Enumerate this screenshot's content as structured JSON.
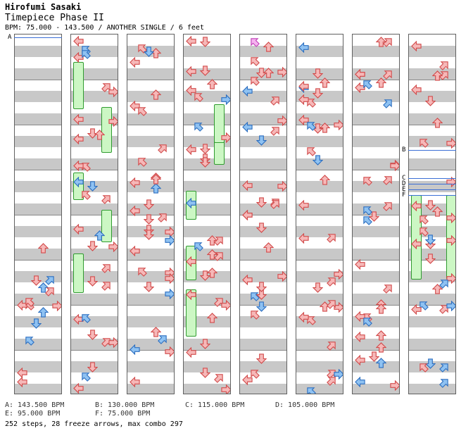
{
  "header": {
    "artist": "Hirofumi Sasaki",
    "title": "Timepiece Phase II",
    "meta": "BPM: 75.000 - 143.500 / ANOTHER SINGLE / 6 feet"
  },
  "chart": {
    "columns": 8,
    "markers": [
      {
        "label": "A",
        "column": 0,
        "row": 0
      },
      {
        "label": "B",
        "column": 7,
        "row": 20
      },
      {
        "label": "C",
        "column": 7,
        "row": 25
      },
      {
        "label": "D",
        "column": 7,
        "row": 26
      },
      {
        "label": "E",
        "column": 7,
        "row": 27
      },
      {
        "label": "F",
        "column": 7,
        "row": 28
      }
    ]
  },
  "legend": [
    {
      "key": "A",
      "text": "A: 143.500 BPM"
    },
    {
      "key": "B",
      "text": "B: 130.000 BPM"
    },
    {
      "key": "C",
      "text": "C: 115.000 BPM"
    },
    {
      "key": "D",
      "text": "D: 105.000 BPM"
    },
    {
      "key": "E",
      "text": "E: 95.000 BPM"
    },
    {
      "key": "F",
      "text": "F: 75.000 BPM"
    }
  ],
  "summary": "252 steps, 28 freeze arrows, max combo 297",
  "colors": {
    "red_arrow": "#f6b8b8",
    "red_stroke": "#d24c4c",
    "blue_arrow": "#8fc2f2",
    "blue_stroke": "#2d6fc0",
    "pink_arrow": "#f5b2ef",
    "freeze_fill": "#ccf7c4",
    "freeze_border": "#2f9b2f",
    "stripe": "#c8c8c8",
    "bpm_line": "#3b6fd6"
  }
}
